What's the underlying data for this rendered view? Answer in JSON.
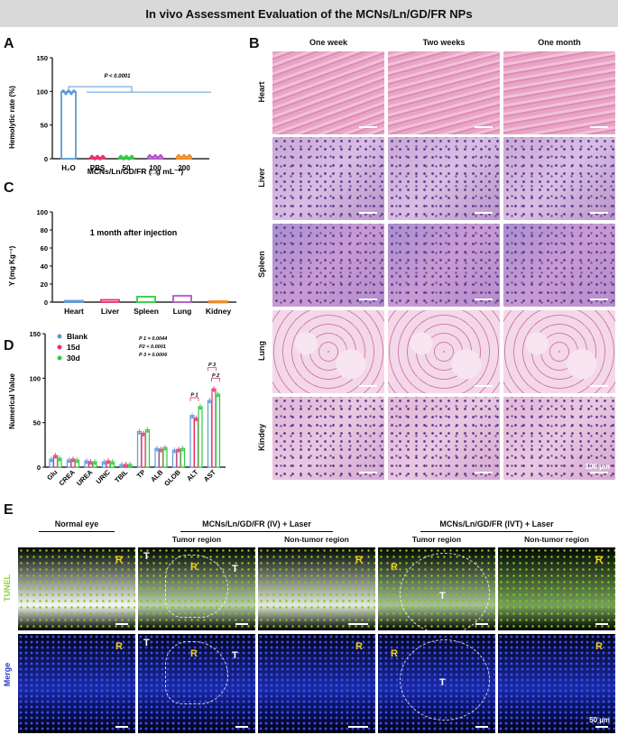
{
  "figure_title": "In vivo Assessment Evaluation of the MCNs/Ln/GD/FR NPs",
  "panels": {
    "a": "A",
    "b": "B",
    "c": "C",
    "d": "D",
    "e": "E"
  },
  "chart_data": [
    {
      "panel": "A",
      "type": "bar",
      "categories": [
        "H₂O",
        "PBS",
        "50",
        "100",
        "200"
      ],
      "values": [
        99,
        2,
        2,
        3,
        3
      ],
      "ylabel": "Hemolytic rate (%)",
      "xlabel": "MCNs/Ln/GD/FR (□g mL⁻¹)",
      "ylim": [
        0,
        150
      ],
      "yticks": [
        "0",
        "50",
        "100",
        "150"
      ],
      "annotation": "P < 0.0001",
      "colors": [
        "#5b9bd5",
        "#e8336d",
        "#2ecc40",
        "#b057c9",
        "#f08a24"
      ]
    },
    {
      "panel": "C",
      "type": "bar",
      "categories": [
        "Heart",
        "Liver",
        "Spleen",
        "Lung",
        "Kidney"
      ],
      "values": [
        1.5,
        2.5,
        6,
        7,
        1
      ],
      "ylabel": "Y (mg Kg⁻¹)",
      "ylim": [
        0,
        100
      ],
      "yticks": [
        "0",
        "20",
        "40",
        "60",
        "80",
        "100"
      ],
      "annotation": "1 month after injection",
      "colors": [
        "#5b9bd5",
        "#e8336d",
        "#2ecc40",
        "#b057c9",
        "#f08a24"
      ]
    },
    {
      "panel": "D",
      "type": "bar",
      "categories": [
        "Glu",
        "CREA",
        "UREA",
        "URIC",
        "TBIL",
        "TP",
        "ALB",
        "GLOB",
        "ALT",
        "AST"
      ],
      "series": [
        {
          "name": "Blank",
          "values": [
            9,
            8,
            7,
            6,
            3,
            40,
            21,
            19,
            58,
            75
          ],
          "color": "#5b9bd5"
        },
        {
          "name": "15d",
          "values": [
            13,
            9,
            6,
            7,
            3,
            38,
            20,
            20,
            55,
            88
          ],
          "color": "#e8336d"
        },
        {
          "name": "30d",
          "values": [
            10,
            8,
            6,
            6,
            3,
            42,
            22,
            21,
            68,
            82
          ],
          "color": "#2ecc40"
        }
      ],
      "ylabel": "Numerical Value",
      "ylim": [
        0,
        150
      ],
      "yticks": [
        "0",
        "50",
        "100",
        "150"
      ],
      "stats": [
        "P 1 = 0.0044",
        "P2 < 0.0001",
        "P 3 = 0.0006"
      ],
      "brackets": [
        "P 1",
        "P 3",
        "P 2"
      ]
    }
  ],
  "histology": {
    "columns": [
      "One week",
      "Two weeks",
      "One month"
    ],
    "rows": [
      "Heart",
      "Liver",
      "Spleen",
      "Lung",
      "Kindey"
    ],
    "scale_label": "100 µm"
  },
  "fluorescence": {
    "groups": [
      {
        "label": "Normal eye",
        "subs": []
      },
      {
        "label": "MCNs/Ln/GD/FR (IV) + Laser",
        "subs": [
          "Tumor region",
          "Non-tumor region"
        ]
      },
      {
        "label": "MCNs/Ln/GD/FR (IVT) + Laser",
        "subs": [
          "Tumor region",
          "Non-tumor region"
        ]
      }
    ],
    "rows": [
      "TUNEL",
      "Merge"
    ],
    "row_colors": [
      "#8bd62a",
      "#2a3cc7"
    ],
    "marks": {
      "r": "R",
      "t": "T"
    },
    "scale_label": "50 µm"
  }
}
